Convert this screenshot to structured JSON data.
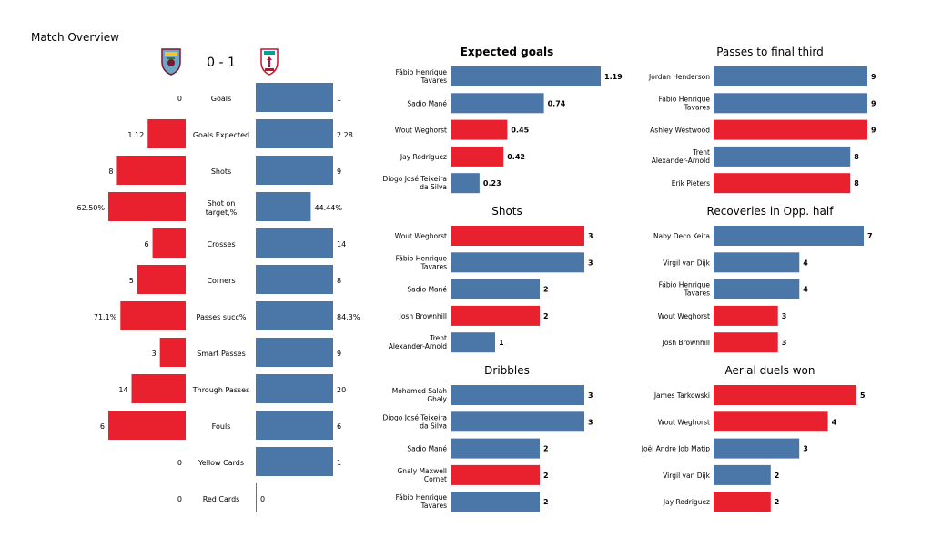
{
  "page_title": "Match Overview",
  "score": "0 - 1",
  "colors": {
    "home": "#e9212f",
    "away": "#4a76a8"
  },
  "icons": {
    "home_crest": "burnley-crest-icon",
    "away_crest": "liverpool-crest-icon"
  },
  "chart_data": [
    {
      "type": "bar",
      "orientation": "diverging",
      "title": "",
      "categories": [
        "Goals",
        "Goals Expected",
        "Shots",
        "Shot on target,%",
        "Crosses",
        "Corners",
        "Passes succ%",
        "Smart Passes",
        "Through Passes",
        "Fouls",
        "Yellow Cards",
        "Red Cards"
      ],
      "series": [
        {
          "values": [
            0,
            1.12,
            8,
            62.5,
            6,
            5,
            71.1,
            3,
            14,
            6,
            0,
            0
          ],
          "labels": [
            "0",
            "1.12",
            "8",
            "62.50%",
            "6",
            "5",
            "71.1%",
            "3",
            "14",
            "6",
            "0",
            "0"
          ]
        },
        {
          "values": [
            1,
            2.28,
            9,
            44.44,
            14,
            8,
            84.3,
            9,
            20,
            6,
            1,
            0
          ],
          "labels": [
            "1",
            "2.28",
            "9",
            "44.44%",
            "14",
            "8",
            "84.3%",
            "9",
            "20",
            "6",
            "1",
            "0"
          ]
        }
      ]
    },
    {
      "type": "bar",
      "orientation": "horizontal",
      "title": "Expected goals",
      "categories": [
        "Fábio Henrique Tavares",
        "Sadio Mané",
        "Wout Weghorst",
        "Jay Rodriguez",
        "Diogo José Teixeira da Silva"
      ],
      "values": [
        1.19,
        0.74,
        0.45,
        0.42,
        0.23
      ],
      "value_labels": [
        "1.19",
        "0.74",
        "0.45",
        "0.42",
        "0.23"
      ],
      "teams": [
        "away",
        "away",
        "home",
        "home",
        "away"
      ]
    },
    {
      "type": "bar",
      "orientation": "horizontal",
      "title": "Shots",
      "categories": [
        "Wout Weghorst",
        "Fábio Henrique Tavares",
        "Sadio Mané",
        "Josh Brownhill",
        "Trent Alexander-Arnold"
      ],
      "values": [
        3,
        3,
        2,
        2,
        1
      ],
      "value_labels": [
        "3",
        "3",
        "2",
        "2",
        "1"
      ],
      "teams": [
        "home",
        "away",
        "away",
        "home",
        "away"
      ]
    },
    {
      "type": "bar",
      "orientation": "horizontal",
      "title": "Dribbles",
      "categories": [
        "Mohamed  Salah Ghaly",
        "Diogo José Teixeira da Silva",
        "Sadio Mané",
        "Gnaly Maxwell Cornet",
        "Fábio Henrique Tavares"
      ],
      "values": [
        3,
        3,
        2,
        2,
        2
      ],
      "value_labels": [
        "3",
        "3",
        "2",
        "2",
        "2"
      ],
      "teams": [
        "away",
        "away",
        "away",
        "home",
        "away"
      ]
    },
    {
      "type": "bar",
      "orientation": "horizontal",
      "title": "Passes to final third",
      "categories": [
        "Jordan Henderson",
        "Fábio Henrique Tavares",
        "Ashley Westwood",
        "Trent Alexander-Arnold",
        "Erik Pieters"
      ],
      "values": [
        9,
        9,
        9,
        8,
        8
      ],
      "value_labels": [
        "9",
        "9",
        "9",
        "8",
        "8"
      ],
      "teams": [
        "away",
        "away",
        "home",
        "away",
        "home"
      ]
    },
    {
      "type": "bar",
      "orientation": "horizontal",
      "title": "Recoveries in Opp. half",
      "categories": [
        "Naby Deco Keita",
        "Virgil van Dijk",
        "Fábio Henrique Tavares",
        "Wout Weghorst",
        "Josh Brownhill"
      ],
      "values": [
        7,
        4,
        4,
        3,
        3
      ],
      "value_labels": [
        "7",
        "4",
        "4",
        "3",
        "3"
      ],
      "teams": [
        "away",
        "away",
        "away",
        "home",
        "home"
      ]
    },
    {
      "type": "bar",
      "orientation": "horizontal",
      "title": "Aerial duels won",
      "categories": [
        "James  Tarkowski",
        "Wout Weghorst",
        "Joël Andre Job Matip",
        "Virgil van Dijk",
        "Jay Rodriguez"
      ],
      "values": [
        5,
        4,
        3,
        2,
        2
      ],
      "value_labels": [
        "5",
        "4",
        "3",
        "2",
        "2"
      ],
      "teams": [
        "home",
        "home",
        "away",
        "away",
        "home"
      ]
    }
  ]
}
